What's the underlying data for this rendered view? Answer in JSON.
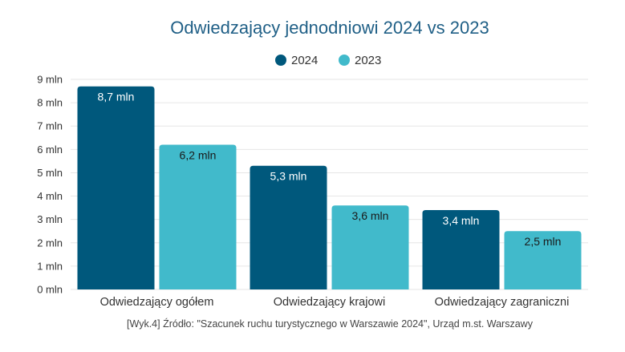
{
  "chart_data": {
    "type": "bar",
    "title": "Odwiedzający jednodniowi 2024 vs 2023",
    "categories": [
      "Odwiedzający ogółem",
      "Odwiedzający krajowi",
      "Odwiedzający zagraniczni"
    ],
    "series": [
      {
        "name": "2024",
        "color": "#00587c",
        "values": [
          8.7,
          5.3,
          3.4
        ],
        "labels": [
          "8,7 mln",
          "5,3 mln",
          "3,4 mln"
        ]
      },
      {
        "name": "2023",
        "color": "#41bacb",
        "values": [
          6.2,
          3.6,
          2.5
        ],
        "labels": [
          "6,2 mln",
          "3,6 mln",
          "2,5 mln"
        ]
      }
    ],
    "ylim": [
      0,
      9
    ],
    "yticks": [
      0,
      1,
      2,
      3,
      4,
      5,
      6,
      7,
      8,
      9
    ],
    "ytick_labels": [
      "0 mln",
      "1 mln",
      "2 mln",
      "3 mln",
      "4 mln",
      "5 mln",
      "6 mln",
      "7 mln",
      "8 mln",
      "9 mln"
    ],
    "xlabel": "",
    "ylabel": "",
    "grid": true,
    "legend_position": "top-center",
    "source": "[Wyk.4] Źródło: \"Szacunek ruchu turystycznego w Warszawie 2024\", Urząd m.st. Warszawy"
  }
}
